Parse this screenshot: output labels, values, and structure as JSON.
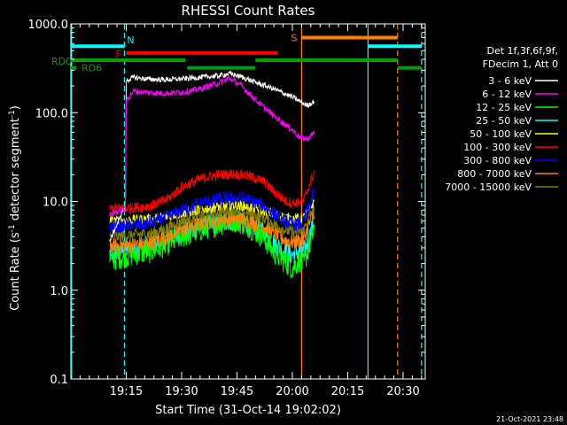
{
  "chart_data": {
    "type": "line",
    "title": "RHESSI Count Rates",
    "xlabel": "Start Time (31-Oct-14 19:02:02)",
    "ylabel_main": "Count Rate (s",
    "ylabel_sup": "-1",
    "ylabel_rest": " detector segment",
    "ylabel_sup2": "-1",
    "ylabel_end": ")",
    "yscale": "log",
    "ylim": [
      0.1,
      1000
    ],
    "xlim_minutes": [
      0,
      96
    ],
    "x_ticks": [
      {
        "label": "19:15",
        "t": 15
      },
      {
        "label": "19:30",
        "t": 30
      },
      {
        "label": "19:45",
        "t": 45
      },
      {
        "label": "20:00",
        "t": 60
      },
      {
        "label": "20:15",
        "t": 75
      },
      {
        "label": "20:30",
        "t": 90
      }
    ],
    "y_ticks": [
      {
        "label": "1000.0",
        "v": 1000
      },
      {
        "label": "100.0",
        "v": 100
      },
      {
        "label": "10.0",
        "v": 10
      },
      {
        "label": "1.0",
        "v": 1
      },
      {
        "label": "0.1",
        "v": 0.1
      }
    ],
    "legend_header": [
      "Det 1f,3f,6f,9f,",
      "FDecim 1, Att 0"
    ],
    "legend_position": "right",
    "footer_date": "21-Oct-2021 23:48",
    "series": [
      {
        "name": "3 - 6 keV",
        "color": "#ffffff",
        "points": [
          [
            10.5,
            3.5
          ],
          [
            12,
            5
          ],
          [
            13,
            6
          ],
          [
            14,
            8
          ],
          [
            14.8,
            8
          ],
          [
            15,
            230
          ],
          [
            17,
            250
          ],
          [
            20,
            240
          ],
          [
            25,
            235
          ],
          [
            30,
            240
          ],
          [
            35,
            250
          ],
          [
            40,
            260
          ],
          [
            43,
            275
          ],
          [
            46,
            255
          ],
          [
            50,
            220
          ],
          [
            55,
            185
          ],
          [
            60,
            150
          ],
          [
            62,
            135
          ],
          [
            64,
            120
          ],
          [
            66,
            135
          ]
        ]
      },
      {
        "name": "6 - 12 keV",
        "color": "#ff00ff",
        "points": [
          [
            10.5,
            7
          ],
          [
            12,
            7.5
          ],
          [
            14,
            8
          ],
          [
            14.8,
            8
          ],
          [
            15,
            140
          ],
          [
            17,
            175
          ],
          [
            20,
            170
          ],
          [
            25,
            165
          ],
          [
            30,
            170
          ],
          [
            35,
            185
          ],
          [
            40,
            215
          ],
          [
            43,
            245
          ],
          [
            46,
            205
          ],
          [
            50,
            140
          ],
          [
            55,
            92
          ],
          [
            60,
            64
          ],
          [
            62,
            53
          ],
          [
            64,
            50
          ],
          [
            66,
            60
          ]
        ]
      },
      {
        "name": "12 - 25 keV",
        "color": "#00ff00",
        "points": [
          [
            10.5,
            2.2
          ],
          [
            14,
            2.4
          ],
          [
            18,
            2.6
          ],
          [
            22,
            2.8
          ],
          [
            26,
            3.3
          ],
          [
            30,
            4
          ],
          [
            35,
            4.8
          ],
          [
            40,
            5.6
          ],
          [
            44,
            6.2
          ],
          [
            48,
            5.4
          ],
          [
            52,
            4
          ],
          [
            55,
            2.7
          ],
          [
            58,
            2.1
          ],
          [
            60,
            1.8
          ],
          [
            62,
            2.2
          ],
          [
            63,
            1.9
          ],
          [
            66,
            5
          ]
        ]
      },
      {
        "name": "25 - 50 keV",
        "color": "#00ffff",
        "points": [
          [
            10.5,
            2.6
          ],
          [
            14,
            2.8
          ],
          [
            18,
            3
          ],
          [
            22,
            3.3
          ],
          [
            26,
            3.8
          ],
          [
            30,
            4.4
          ],
          [
            35,
            5.1
          ],
          [
            40,
            5.8
          ],
          [
            44,
            6.2
          ],
          [
            48,
            5.6
          ],
          [
            52,
            4.5
          ],
          [
            55,
            3.4
          ],
          [
            58,
            2.8
          ],
          [
            60,
            2.5
          ],
          [
            62,
            2.8
          ],
          [
            63,
            2.6
          ],
          [
            66,
            6
          ]
        ]
      },
      {
        "name": "50 - 100 keV",
        "color": "#ffff00",
        "points": [
          [
            10.5,
            6
          ],
          [
            14,
            6.1
          ],
          [
            18,
            6.2
          ],
          [
            22,
            6.4
          ],
          [
            26,
            6.8
          ],
          [
            30,
            7.4
          ],
          [
            35,
            8.1
          ],
          [
            40,
            8.8
          ],
          [
            44,
            9.2
          ],
          [
            48,
            8.8
          ],
          [
            52,
            8
          ],
          [
            55,
            7.2
          ],
          [
            58,
            6.6
          ],
          [
            60,
            6.4
          ],
          [
            62,
            6.4
          ],
          [
            63,
            6.5
          ],
          [
            66,
            10
          ]
        ]
      },
      {
        "name": "100 - 300 keV",
        "color": "#ff0000",
        "points": [
          [
            10.5,
            8.3
          ],
          [
            14,
            8.4
          ],
          [
            18,
            8.6
          ],
          [
            22,
            9
          ],
          [
            26,
            10.5
          ],
          [
            30,
            14.5
          ],
          [
            35,
            18
          ],
          [
            40,
            20
          ],
          [
            44,
            20.5
          ],
          [
            48,
            19.5
          ],
          [
            52,
            17
          ],
          [
            55,
            13
          ],
          [
            58,
            10.2
          ],
          [
            60,
            9.6
          ],
          [
            62,
            9.8
          ],
          [
            63,
            10
          ],
          [
            66,
            22
          ]
        ]
      },
      {
        "name": "300 - 800 keV",
        "color": "#0000ff",
        "points": [
          [
            10.5,
            5.2
          ],
          [
            14,
            5.3
          ],
          [
            18,
            5.5
          ],
          [
            22,
            5.8
          ],
          [
            26,
            6.6
          ],
          [
            30,
            8
          ],
          [
            35,
            9.5
          ],
          [
            40,
            10.6
          ],
          [
            44,
            11
          ],
          [
            48,
            10.4
          ],
          [
            52,
            9
          ],
          [
            55,
            7.4
          ],
          [
            58,
            6
          ],
          [
            60,
            5.5
          ],
          [
            62,
            5.6
          ],
          [
            63,
            5.7
          ],
          [
            66,
            13
          ]
        ]
      },
      {
        "name": "800 - 7000 keV",
        "color": "#ff8000",
        "points": [
          [
            10.5,
            3.1
          ],
          [
            14,
            3.2
          ],
          [
            18,
            3.3
          ],
          [
            22,
            3.5
          ],
          [
            26,
            4
          ],
          [
            30,
            4.8
          ],
          [
            35,
            5.6
          ],
          [
            40,
            6.2
          ],
          [
            44,
            6.5
          ],
          [
            48,
            6.1
          ],
          [
            52,
            5.3
          ],
          [
            55,
            4.4
          ],
          [
            58,
            3.7
          ],
          [
            60,
            3.5
          ],
          [
            62,
            3.6
          ],
          [
            63,
            3.7
          ],
          [
            66,
            8
          ]
        ]
      },
      {
        "name": "7000 - 15000 keV",
        "color": "#808000",
        "points": [
          [
            10.5,
            4
          ],
          [
            14,
            4.1
          ],
          [
            18,
            4.2
          ],
          [
            22,
            4.4
          ],
          [
            26,
            5
          ],
          [
            30,
            6
          ],
          [
            35,
            7
          ],
          [
            40,
            7.6
          ],
          [
            44,
            8
          ],
          [
            48,
            7.5
          ],
          [
            52,
            6.6
          ],
          [
            55,
            5.6
          ],
          [
            58,
            4.8
          ],
          [
            60,
            4.5
          ],
          [
            62,
            4.6
          ],
          [
            63,
            4.7
          ],
          [
            66,
            9
          ]
        ]
      }
    ],
    "vlines": [
      {
        "t": 0.2,
        "color": "#00ffff",
        "style": "solid"
      },
      {
        "t": 14.5,
        "color": "#00ffff",
        "style": "dashed"
      },
      {
        "t": 62.5,
        "color": "#ff8000",
        "style": "solid"
      },
      {
        "t": 80.5,
        "color": "#00ffff",
        "style": "solid"
      },
      {
        "t": 88.5,
        "color": "#ff8000",
        "style": "dashed"
      },
      {
        "t": 95,
        "color": "#00ffff",
        "style": "dashed"
      }
    ],
    "flag_bars": [
      {
        "label": "N",
        "color": "#00ffff",
        "segments": [
          [
            0,
            14.5
          ],
          [
            80.5,
            95
          ]
        ],
        "level": 560
      },
      {
        "label": "S",
        "color": "#ff8000",
        "segments": [
          [
            62.5,
            88.5
          ]
        ],
        "level": 700
      },
      {
        "label": "F",
        "color": "#ff0000",
        "segments": [
          [
            15,
            56
          ]
        ],
        "level": 470
      },
      {
        "label": "RD0",
        "color": "#00a000",
        "segments": [
          [
            0,
            31
          ],
          [
            50,
            88.5
          ]
        ],
        "level": 390
      },
      {
        "label": "RD6",
        "color": "#00a000",
        "segments": [
          [
            0,
            1.5
          ],
          [
            31.5,
            50
          ],
          [
            88.5,
            95
          ]
        ],
        "level": 320
      }
    ]
  }
}
